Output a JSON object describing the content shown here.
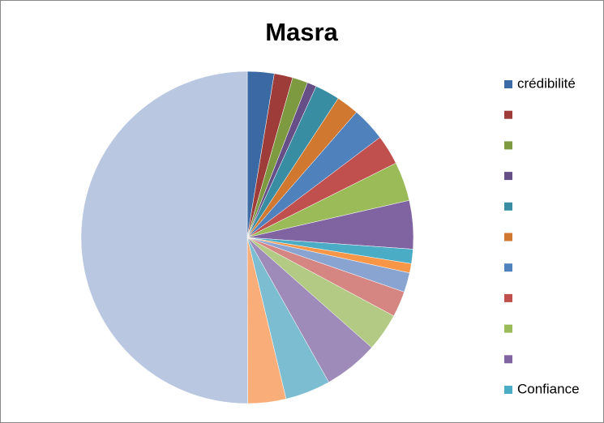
{
  "chart_data": {
    "type": "pie",
    "title": "Masra",
    "categories": [
      "crédibilité",
      null,
      null,
      null,
      null,
      null,
      null,
      null,
      null,
      null,
      "Confiance",
      null,
      null,
      null,
      null,
      null,
      null,
      null,
      null
    ],
    "values": [
      2.6,
      1.8,
      1.5,
      0.9,
      2.4,
      2.2,
      3.3,
      2.9,
      3.8,
      4.7,
      1.4,
      0.9,
      1.9,
      2.5,
      3.7,
      5.3,
      4.4,
      3.7,
      50
    ],
    "colors": [
      "#3A69A4",
      "#9D3C39",
      "#7E9A40",
      "#654F86",
      "#398DA3",
      "#D0782F",
      "#4F81BD",
      "#C0504D",
      "#9BBB59",
      "#8064A2",
      "#4BACC6",
      "#F79646",
      "#8AA4D2",
      "#D58582",
      "#B2CA83",
      "#9E8BB9",
      "#7CBDD2",
      "#F9AD78",
      "#B9C7E1"
    ],
    "legend": "right"
  }
}
